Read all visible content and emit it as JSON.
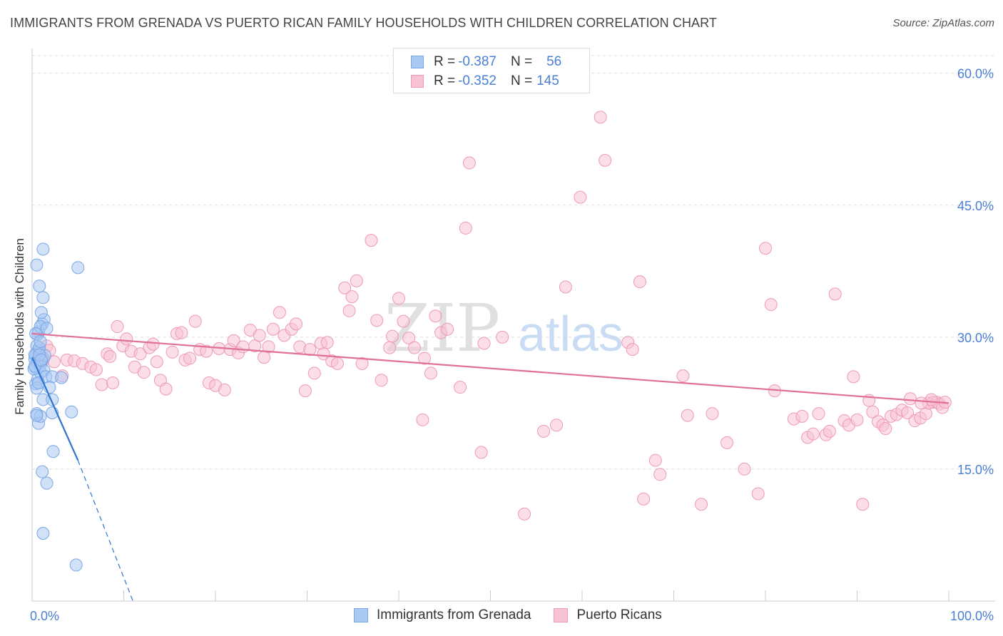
{
  "title": "IMMIGRANTS FROM GRENADA VS PUERTO RICAN FAMILY HOUSEHOLDS WITH CHILDREN CORRELATION CHART",
  "source": "Source: ZipAtlas.com",
  "watermark": {
    "zip": "ZIP",
    "atlas": "atlas"
  },
  "legend": {
    "series1": {
      "r_label": "R =",
      "r_value": "-0.387",
      "n_label": "N =",
      "n_value": "56"
    },
    "series2": {
      "r_label": "R =",
      "r_value": "-0.352",
      "n_label": "N =",
      "n_value": "145"
    }
  },
  "bottom_legend": {
    "series1": "Immigrants from Grenada",
    "series2": "Puerto Ricans"
  },
  "colors": {
    "blue_fill": "#a9c8f2",
    "blue_stroke": "#7aa7e6",
    "blue_line": "#2f74d0",
    "pink_fill": "#f7c3d4",
    "pink_stroke": "#ee9ab5",
    "pink_line": "#e0709a",
    "axis_label": "#4a7fd4",
    "grid": "#dddddd"
  },
  "chart_data": {
    "type": "scatter",
    "title": "IMMIGRANTS FROM GRENADA VS PUERTO RICAN FAMILY HOUSEHOLDS WITH CHILDREN CORRELATION CHART",
    "xlabel": "",
    "ylabel": "Family Households with Children",
    "xlim": [
      0,
      100
    ],
    "ylim": [
      0,
      62
    ],
    "x_tick_labels": [
      {
        "value": 0,
        "label": "0.0%"
      },
      {
        "value": 100,
        "label": "100.0%"
      }
    ],
    "y_ticks": [
      {
        "value": 15,
        "label": "15.0%"
      },
      {
        "value": 30,
        "label": "30.0%"
      },
      {
        "value": 45,
        "label": "45.0%"
      },
      {
        "value": 60,
        "label": "60.0%"
      }
    ],
    "series": [
      {
        "name": "Immigrants from Grenada",
        "color": "blue",
        "trend": {
          "x0": 0,
          "y0": 27.7,
          "x1": 5,
          "y1": 16.0,
          "dash_to_x": 11,
          "dash_to_y": 0
        },
        "points": [
          [
            0.3,
            27.5
          ],
          [
            0.5,
            28.2
          ],
          [
            0.6,
            27.0
          ],
          [
            0.4,
            26.5
          ],
          [
            0.8,
            27.8
          ],
          [
            0.7,
            28.5
          ],
          [
            1.0,
            27.2
          ],
          [
            0.9,
            26.8
          ],
          [
            1.2,
            27.6
          ],
          [
            0.5,
            29.0
          ],
          [
            0.6,
            30.3
          ],
          [
            0.7,
            30.6
          ],
          [
            1.1,
            31.5
          ],
          [
            1.3,
            32.0
          ],
          [
            0.9,
            31.2
          ],
          [
            1.6,
            31.0
          ],
          [
            1.0,
            32.8
          ],
          [
            1.2,
            34.5
          ],
          [
            0.8,
            35.8
          ],
          [
            0.5,
            38.2
          ],
          [
            1.2,
            40.0
          ],
          [
            5.0,
            37.9
          ],
          [
            0.4,
            24.7
          ],
          [
            0.6,
            25.2
          ],
          [
            0.5,
            24.2
          ],
          [
            0.9,
            26.0
          ],
          [
            1.3,
            26.2
          ],
          [
            1.5,
            25.5
          ],
          [
            2.2,
            25.5
          ],
          [
            3.2,
            25.4
          ],
          [
            0.5,
            21.3
          ],
          [
            0.7,
            20.2
          ],
          [
            0.9,
            21.0
          ],
          [
            1.2,
            22.9
          ],
          [
            2.2,
            21.4
          ],
          [
            4.3,
            21.5
          ],
          [
            1.9,
            24.3
          ],
          [
            2.2,
            22.9
          ],
          [
            2.3,
            17.0
          ],
          [
            1.1,
            14.7
          ],
          [
            1.6,
            13.4
          ],
          [
            1.2,
            7.7
          ],
          [
            4.8,
            4.1
          ],
          [
            0.4,
            27.9
          ],
          [
            0.6,
            27.3
          ],
          [
            0.3,
            28.0
          ],
          [
            1.4,
            27.9
          ],
          [
            0.2,
            26.4
          ],
          [
            0.8,
            28.8
          ],
          [
            0.4,
            30.4
          ],
          [
            0.9,
            29.5
          ],
          [
            0.3,
            26.7
          ],
          [
            0.7,
            24.8
          ],
          [
            0.5,
            21.1
          ],
          [
            0.8,
            28.0
          ],
          [
            1.0,
            27.4
          ]
        ]
      },
      {
        "name": "Puerto Ricans",
        "color": "pink",
        "trend": {
          "x0": 0,
          "y0": 30.4,
          "x1": 100,
          "y1": 22.5
        },
        "points": [
          [
            0.8,
            28.4
          ],
          [
            1.2,
            27.3
          ],
          [
            1.6,
            29.0
          ],
          [
            1.9,
            28.5
          ],
          [
            2.4,
            27.2
          ],
          [
            3.3,
            25.6
          ],
          [
            3.8,
            27.4
          ],
          [
            4.6,
            27.3
          ],
          [
            5.5,
            27.0
          ],
          [
            6.4,
            26.6
          ],
          [
            7.0,
            26.3
          ],
          [
            7.6,
            24.6
          ],
          [
            8.2,
            28.1
          ],
          [
            8.5,
            27.8
          ],
          [
            8.8,
            24.8
          ],
          [
            9.3,
            31.2
          ],
          [
            9.9,
            29.0
          ],
          [
            10.3,
            29.8
          ],
          [
            10.8,
            28.4
          ],
          [
            11.2,
            26.6
          ],
          [
            11.8,
            28.1
          ],
          [
            12.2,
            26.0
          ],
          [
            12.8,
            28.8
          ],
          [
            13.2,
            29.2
          ],
          [
            13.6,
            27.2
          ],
          [
            14.0,
            25.1
          ],
          [
            14.6,
            24.1
          ],
          [
            15.3,
            28.3
          ],
          [
            15.8,
            30.4
          ],
          [
            16.3,
            30.5
          ],
          [
            16.7,
            27.4
          ],
          [
            17.2,
            27.6
          ],
          [
            17.8,
            31.8
          ],
          [
            18.3,
            28.6
          ],
          [
            19.0,
            28.4
          ],
          [
            19.3,
            24.8
          ],
          [
            20.0,
            24.5
          ],
          [
            20.4,
            28.7
          ],
          [
            21.0,
            24.0
          ],
          [
            21.6,
            28.6
          ],
          [
            22.0,
            29.6
          ],
          [
            22.5,
            28.2
          ],
          [
            23.0,
            28.9
          ],
          [
            23.8,
            30.8
          ],
          [
            24.3,
            29.0
          ],
          [
            24.8,
            30.2
          ],
          [
            25.3,
            27.7
          ],
          [
            25.8,
            28.9
          ],
          [
            26.3,
            30.9
          ],
          [
            27.0,
            32.8
          ],
          [
            27.5,
            30.2
          ],
          [
            28.3,
            30.9
          ],
          [
            28.8,
            31.5
          ],
          [
            29.2,
            28.9
          ],
          [
            29.8,
            23.9
          ],
          [
            30.3,
            28.6
          ],
          [
            30.8,
            25.9
          ],
          [
            31.5,
            29.3
          ],
          [
            31.8,
            28.1
          ],
          [
            32.2,
            29.4
          ],
          [
            32.7,
            27.3
          ],
          [
            33.3,
            27.0
          ],
          [
            34.1,
            35.6
          ],
          [
            34.6,
            33.0
          ],
          [
            34.9,
            34.6
          ],
          [
            35.4,
            36.4
          ],
          [
            36.0,
            27.0
          ],
          [
            37.0,
            41.0
          ],
          [
            37.6,
            31.9
          ],
          [
            38.1,
            25.1
          ],
          [
            39.0,
            28.8
          ],
          [
            39.3,
            30.1
          ],
          [
            40.0,
            34.4
          ],
          [
            40.5,
            31.8
          ],
          [
            41.1,
            29.9
          ],
          [
            41.7,
            28.8
          ],
          [
            42.6,
            20.6
          ],
          [
            42.8,
            27.6
          ],
          [
            43.5,
            25.9
          ],
          [
            44.0,
            32.4
          ],
          [
            44.6,
            30.5
          ],
          [
            45.3,
            30.9
          ],
          [
            46.7,
            24.3
          ],
          [
            47.3,
            42.4
          ],
          [
            47.7,
            49.8
          ],
          [
            49.0,
            16.9
          ],
          [
            49.3,
            29.3
          ],
          [
            51.3,
            30.0
          ],
          [
            53.7,
            9.9
          ],
          [
            55.8,
            19.3
          ],
          [
            57.2,
            20.0
          ],
          [
            58.2,
            35.7
          ],
          [
            59.8,
            45.9
          ],
          [
            62.0,
            55.0
          ],
          [
            62.5,
            50.1
          ],
          [
            65.0,
            29.4
          ],
          [
            65.5,
            28.6
          ],
          [
            66.3,
            36.3
          ],
          [
            66.7,
            11.6
          ],
          [
            68.0,
            16.0
          ],
          [
            68.5,
            14.4
          ],
          [
            71.0,
            25.6
          ],
          [
            71.5,
            21.1
          ],
          [
            73.0,
            11.0
          ],
          [
            74.2,
            21.3
          ],
          [
            75.8,
            18.0
          ],
          [
            77.7,
            15.0
          ],
          [
            79.2,
            12.2
          ],
          [
            80.0,
            40.1
          ],
          [
            80.6,
            33.7
          ],
          [
            81.0,
            23.9
          ],
          [
            83.1,
            20.7
          ],
          [
            84.0,
            21.0
          ],
          [
            84.6,
            18.6
          ],
          [
            85.2,
            19.0
          ],
          [
            85.8,
            21.3
          ],
          [
            86.6,
            18.9
          ],
          [
            87.0,
            19.3
          ],
          [
            87.6,
            34.9
          ],
          [
            88.6,
            20.5
          ],
          [
            89.1,
            20.0
          ],
          [
            89.6,
            25.5
          ],
          [
            90.0,
            20.6
          ],
          [
            90.6,
            11.0
          ],
          [
            91.3,
            22.8
          ],
          [
            91.7,
            21.5
          ],
          [
            92.3,
            20.4
          ],
          [
            92.8,
            20.0
          ],
          [
            93.1,
            19.6
          ],
          [
            93.7,
            21.0
          ],
          [
            94.3,
            21.2
          ],
          [
            94.9,
            21.7
          ],
          [
            95.5,
            21.4
          ],
          [
            95.8,
            23.0
          ],
          [
            96.3,
            20.5
          ],
          [
            96.9,
            20.8
          ],
          [
            97.5,
            21.3
          ],
          [
            97.8,
            22.5
          ],
          [
            98.3,
            22.6
          ],
          [
            98.7,
            22.6
          ],
          [
            99.0,
            22.4
          ],
          [
            99.3,
            22.0
          ],
          [
            99.6,
            22.6
          ],
          [
            98.1,
            22.9
          ],
          [
            97.0,
            22.5
          ]
        ]
      }
    ]
  }
}
